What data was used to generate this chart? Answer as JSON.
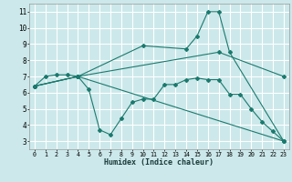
{
  "xlabel": "Humidex (Indice chaleur)",
  "bg_color": "#cce8ea",
  "grid_color": "#ffffff",
  "line_color": "#1a7a6e",
  "xlim": [
    -0.5,
    23.5
  ],
  "ylim": [
    2.5,
    11.5
  ],
  "xticks": [
    0,
    1,
    2,
    3,
    4,
    5,
    6,
    7,
    8,
    9,
    10,
    11,
    12,
    13,
    14,
    15,
    16,
    17,
    18,
    19,
    20,
    21,
    22,
    23
  ],
  "yticks": [
    3,
    4,
    5,
    6,
    7,
    8,
    9,
    10,
    11
  ],
  "series": [
    {
      "x": [
        0,
        1,
        2,
        3,
        4,
        5,
        6,
        7,
        8,
        9,
        10,
        11,
        12,
        13,
        14,
        15,
        16,
        17,
        18,
        19,
        20,
        21,
        22,
        23
      ],
      "y": [
        6.4,
        7.0,
        7.1,
        7.1,
        7.0,
        6.2,
        3.7,
        3.4,
        4.4,
        5.4,
        5.6,
        5.6,
        6.5,
        6.5,
        6.8,
        6.9,
        6.8,
        6.8,
        5.9,
        5.9,
        5.0,
        4.2,
        3.6,
        3.0
      ]
    },
    {
      "x": [
        0,
        4,
        17,
        23
      ],
      "y": [
        6.4,
        7.0,
        8.5,
        7.0
      ]
    },
    {
      "x": [
        0,
        4,
        10,
        14,
        15,
        16,
        17,
        18,
        23
      ],
      "y": [
        6.4,
        7.0,
        8.9,
        8.7,
        9.5,
        11.0,
        11.0,
        8.5,
        3.0
      ]
    },
    {
      "x": [
        0,
        4,
        23
      ],
      "y": [
        6.4,
        7.0,
        3.0
      ]
    }
  ]
}
